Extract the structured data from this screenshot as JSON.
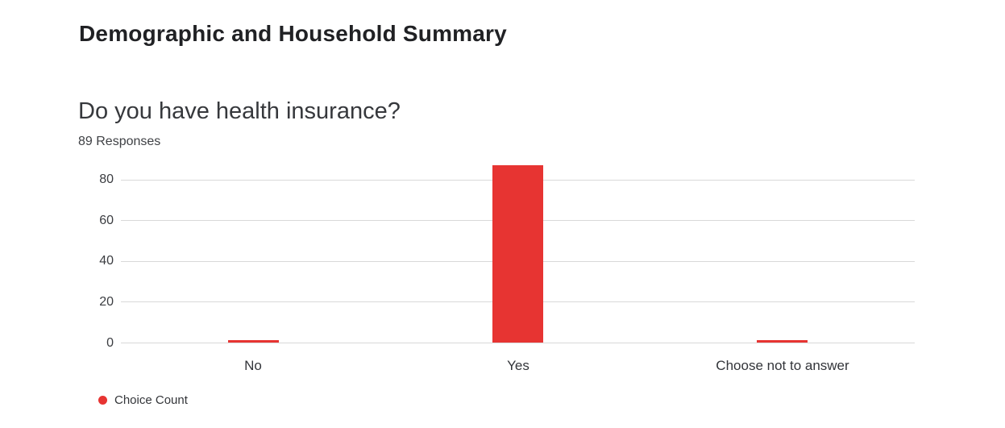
{
  "page": {
    "title": "Demographic and Household Summary",
    "background_color": "#ffffff"
  },
  "question": {
    "title": "Do you have health insurance?",
    "response_count_label": "89 Responses"
  },
  "chart_data": {
    "type": "bar",
    "title": "Do you have health insurance?",
    "subtitle": "89 Responses",
    "categories": [
      "No",
      "Yes",
      "Choose not to answer"
    ],
    "series": [
      {
        "name": "Choice Count",
        "values": [
          1,
          87,
          1
        ],
        "color": "#e73432"
      }
    ],
    "yticks": [
      0,
      20,
      40,
      60,
      80
    ],
    "ylim": [
      0,
      89
    ],
    "xlabel": "",
    "ylabel": "",
    "grid": true,
    "gridline_color": "#d9d9d9",
    "bar_color": "#e73432",
    "legend": {
      "position": "bottom-left",
      "entries": [
        {
          "label": "Choice Count",
          "color": "#e73432",
          "marker": "circle-icon"
        }
      ]
    }
  }
}
